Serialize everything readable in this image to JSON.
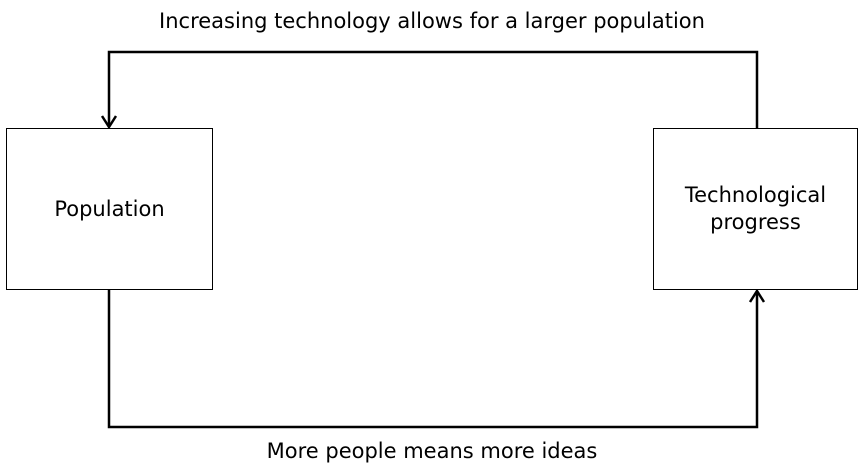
{
  "nodes": {
    "population": {
      "label": "Population"
    },
    "technological_progress": {
      "label": "Technological\nprogress"
    }
  },
  "edges": {
    "top": {
      "from": "technological_progress",
      "to": "population",
      "label": "Increasing technology allows for a larger population"
    },
    "bottom": {
      "from": "population",
      "to": "technological_progress",
      "label": "More people means more ideas"
    }
  }
}
